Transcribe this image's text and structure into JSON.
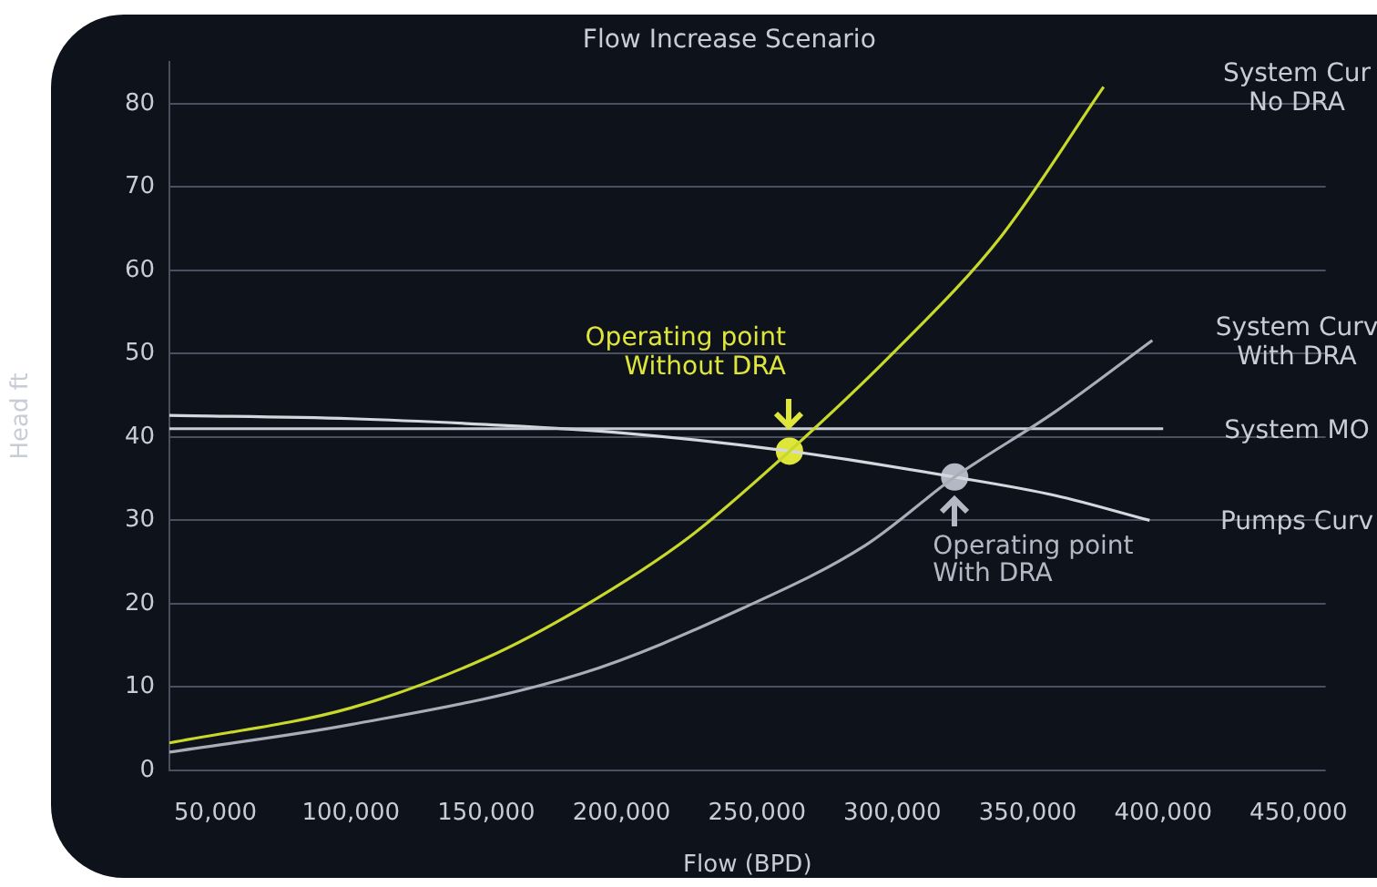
{
  "chart_data": {
    "type": "line",
    "title": "Flow Increase Scenario",
    "xlabel": "Flow (BPD)",
    "ylabel": "Head ft",
    "xlim": [
      33000,
      460000
    ],
    "xticks": [
      {
        "value": 50000,
        "label": "50,000"
      },
      {
        "value": 100000,
        "label": "100,000"
      },
      {
        "value": 150000,
        "label": "150,000"
      },
      {
        "value": 200000,
        "label": "200,000"
      },
      {
        "value": 250000,
        "label": "250,000"
      },
      {
        "value": 300000,
        "label": "300,000"
      },
      {
        "value": 350000,
        "label": "350,000"
      },
      {
        "value": 400000,
        "label": "400,000"
      },
      {
        "value": 450000,
        "label": "450,000"
      }
    ],
    "ylim": [
      0,
      85
    ],
    "yticks": [
      0,
      10,
      20,
      30,
      40,
      50,
      60,
      70,
      80
    ],
    "grid": "y",
    "legend": false,
    "marker": "none",
    "line_style": "solid",
    "series": [
      {
        "name": "System Cur\nNo DRA",
        "color": "#c9d92a",
        "x": [
          33000,
          100000,
          150000,
          185000,
          225000,
          262000,
          300000,
          340000,
          378000
        ],
        "values": [
          3.3,
          7.5,
          13.5,
          19.5,
          28,
          38.3,
          50,
          64,
          82
        ]
      },
      {
        "name": "System Curv\nWith DRA",
        "color": "#a9adb8",
        "x": [
          33000,
          100000,
          185000,
          245000,
          290000,
          323000,
          360000,
          396000
        ],
        "values": [
          2.2,
          5.5,
          11.6,
          19.5,
          27,
          35.2,
          43,
          51.6
        ]
      },
      {
        "name": "System MO",
        "color": "#c8ccd4",
        "x": [
          33000,
          400000
        ],
        "values": [
          41,
          41
        ]
      },
      {
        "name": "Pumps Curv",
        "color": "#d4d7de",
        "x": [
          33000,
          100000,
          150000,
          200000,
          262000,
          323000,
          360000,
          395000
        ],
        "values": [
          42.6,
          42.2,
          41.5,
          40.5,
          38.3,
          35.2,
          33,
          30
        ]
      },
      {
        "type": "scatter",
        "marker": "circle",
        "color": "#dfe63a",
        "x": [
          262000
        ],
        "values": [
          38.3
        ]
      },
      {
        "type": "scatter",
        "marker": "circle",
        "color": "#b4b8c4",
        "x": [
          323000
        ],
        "values": [
          35.2
        ]
      }
    ],
    "annotations": [
      {
        "text": "Operating point\nWithout DRA",
        "x": 262000,
        "y": 38.3
      },
      {
        "text": "Operating point\nWith DRA",
        "x": 323000,
        "y": 35.2
      }
    ]
  }
}
